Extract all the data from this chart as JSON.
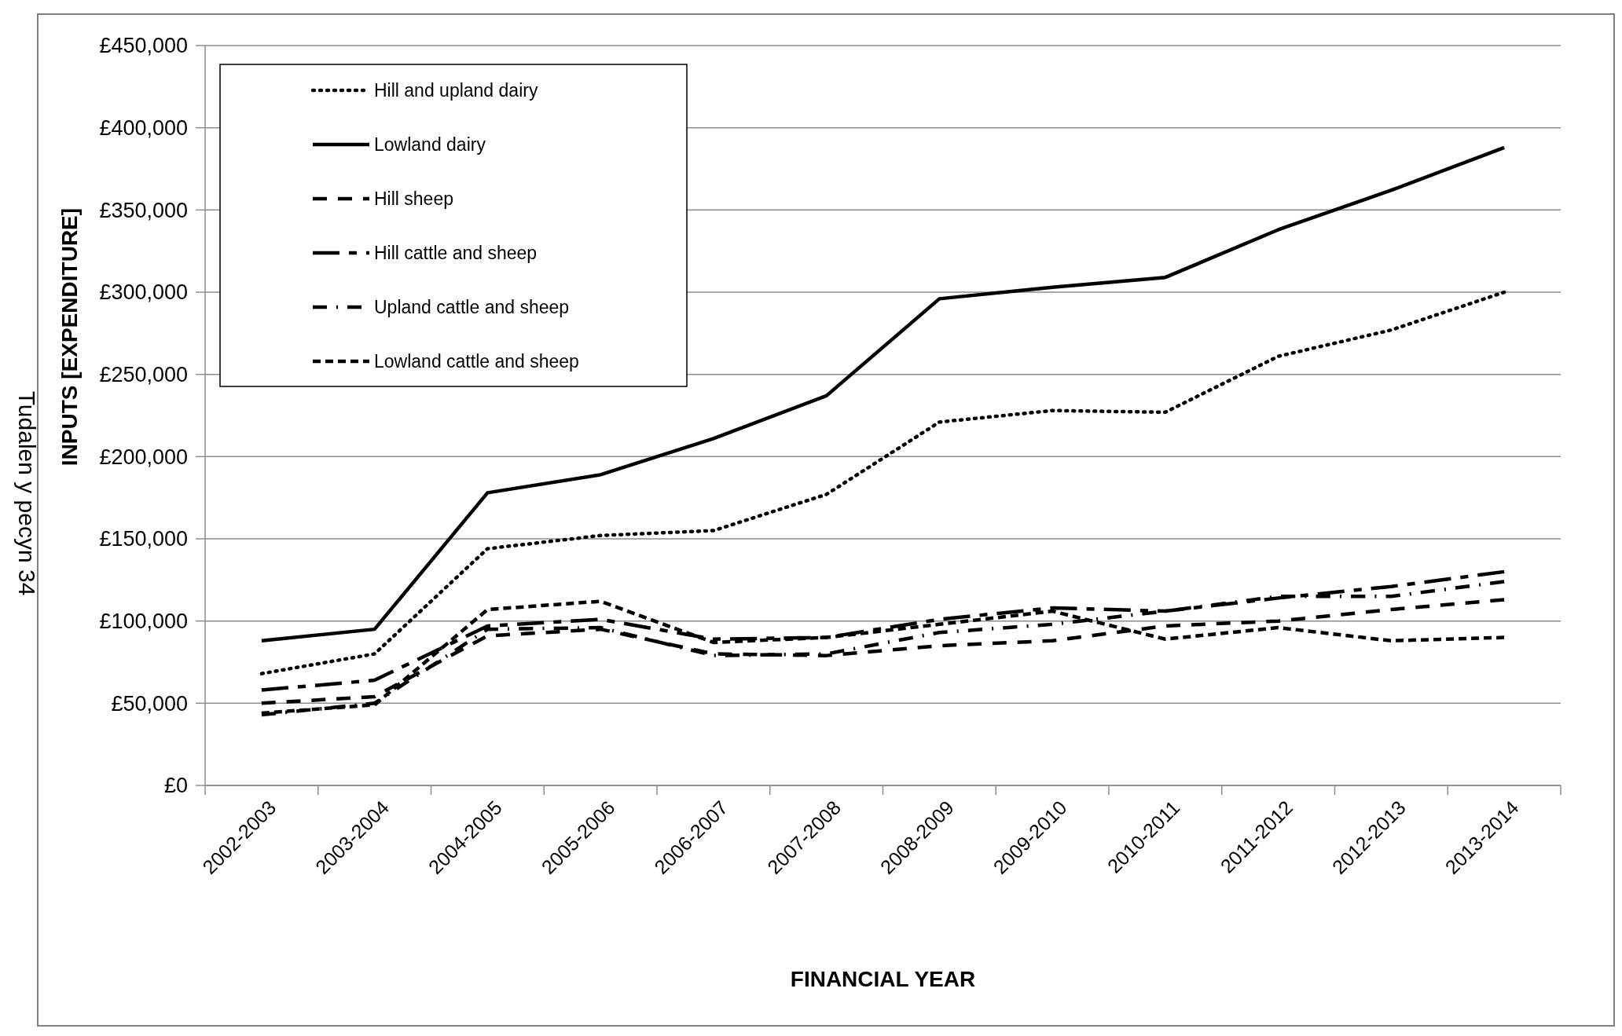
{
  "chart_data": {
    "type": "line",
    "xlabel": "FINANCIAL YEAR",
    "ylabel": "INPUTS [EXPENDITURE]",
    "categories": [
      "2002-2003",
      "2003-2004",
      "2004-2005",
      "2005-2006",
      "2006-2007",
      "2007-2008",
      "2008-2009",
      "2009-2010",
      "2010-2011",
      "2011-2012",
      "2012-2013",
      "2013-2014"
    ],
    "series": [
      {
        "name": "Hill and upland dairy",
        "color": "#000000",
        "line_style": "dotted",
        "values": [
          68000,
          80000,
          144000,
          152000,
          155000,
          177000,
          221000,
          228000,
          227000,
          261000,
          277000,
          300000
        ]
      },
      {
        "name": "Lowland dairy",
        "color": "#000000",
        "line_style": "solid",
        "values": [
          88000,
          95000,
          178000,
          189000,
          211000,
          237000,
          296000,
          303000,
          309000,
          338000,
          362000,
          388000
        ]
      },
      {
        "name": "Hill sheep",
        "color": "#000000",
        "line_style": "dashed",
        "values": [
          50000,
          54000,
          91000,
          95000,
          80000,
          79000,
          85000,
          88000,
          97000,
          100000,
          107000,
          113000
        ]
      },
      {
        "name": "Hill cattle and sheep",
        "color": "#000000",
        "line_style": "longdash",
        "values": [
          58000,
          64000,
          97000,
          101000,
          89000,
          90000,
          101000,
          108000,
          106000,
          114000,
          121000,
          130000
        ]
      },
      {
        "name": "Upland cattle and sheep",
        "color": "#000000",
        "line_style": "dashdot",
        "values": [
          43000,
          50000,
          95000,
          96000,
          79000,
          80000,
          93000,
          98000,
          106000,
          115000,
          115000,
          124000
        ]
      },
      {
        "name": "Lowland cattle and sheep",
        "color": "#000000",
        "line_style": "shortdash",
        "values": [
          44000,
          49000,
          107000,
          112000,
          87000,
          90000,
          98000,
          106000,
          89000,
          96000,
          88000,
          90000
        ]
      }
    ],
    "ylim": [
      0,
      450000
    ],
    "yticks": [
      {
        "value": 0,
        "label": "£0"
      },
      {
        "value": 50000,
        "label": "£50,000"
      },
      {
        "value": 100000,
        "label": "£100,000"
      },
      {
        "value": 150000,
        "label": "£150,000"
      },
      {
        "value": 200000,
        "label": "£200,000"
      },
      {
        "value": 250000,
        "label": "£250,000"
      },
      {
        "value": 300000,
        "label": "£300,000"
      },
      {
        "value": 350000,
        "label": "£350,000"
      },
      {
        "value": 400000,
        "label": "£400,000"
      },
      {
        "value": 450000,
        "label": "£450,000"
      }
    ],
    "grid": "y",
    "legend": "top left",
    "marker": "none",
    "annotations": [
      "Tudalen y pecyn 34"
    ]
  }
}
